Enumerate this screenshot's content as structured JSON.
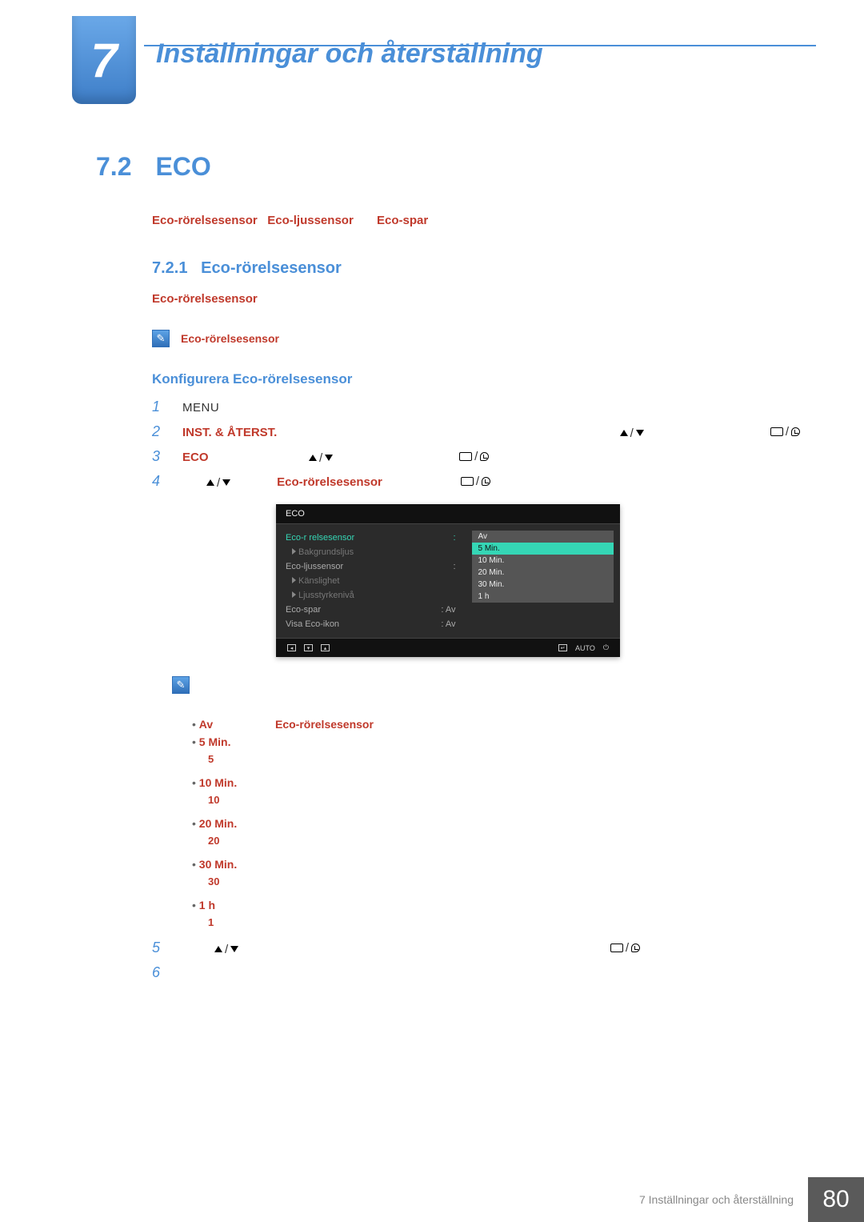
{
  "chapter": {
    "number": "7",
    "title": "Inställningar och återställning"
  },
  "section": {
    "number": "7.2",
    "title": "ECO"
  },
  "intro_terms": {
    "t1": "Eco-rörelsesensor",
    "t2": "Eco-ljussensor",
    "t3": "Eco-spar"
  },
  "subsection": {
    "number": "7.2.1",
    "title": "Eco-rörelsesensor"
  },
  "body": {
    "p1_term": "Eco-rörelsesensor",
    "note_term": "Eco-rörelsesensor",
    "configure_heading": "Konfigurera Eco-rörelsesensor"
  },
  "steps": {
    "s1": {
      "num": "1",
      "label": "MENU"
    },
    "s2": {
      "num": "2",
      "label": "INST. & ÅTERST."
    },
    "s3": {
      "num": "3",
      "label": "ECO"
    },
    "s4": {
      "num": "4",
      "label": "Eco-rörelsesensor"
    },
    "s5": {
      "num": "5"
    },
    "s6": {
      "num": "6"
    }
  },
  "osd": {
    "title": "ECO",
    "left_rows": [
      {
        "label": "Eco-r relsesensor",
        "value": "",
        "cls": "active"
      },
      {
        "label": "Bakgrundsljus",
        "value": "",
        "cls": "sub"
      },
      {
        "label": "Eco-ljussensor",
        "value": "",
        "cls": ""
      },
      {
        "label": "Känslighet",
        "value": "",
        "cls": "sub"
      },
      {
        "label": "Ljusstyrkenivå",
        "value": "",
        "cls": "sub"
      },
      {
        "label": "Eco-spar",
        "value": "Av",
        "cls": ""
      },
      {
        "label": "Visa Eco-ikon",
        "value": "Av",
        "cls": ""
      }
    ],
    "right_opts": [
      "Av",
      "5 Min.",
      "10 Min.",
      "20 Min.",
      "30 Min.",
      "1 h"
    ],
    "right_selected": "5 Min.",
    "footer_auto": "AUTO"
  },
  "bullets": {
    "b_av": {
      "label": "Av",
      "term": "Eco-rörelsesensor"
    },
    "b5": {
      "label": "5 Min.",
      "sub": "5"
    },
    "b10": {
      "label": "10 Min.",
      "sub": "10"
    },
    "b20": {
      "label": "20 Min.",
      "sub": "20"
    },
    "b30": {
      "label": "30 Min.",
      "sub": "30"
    },
    "b1h": {
      "label": "1 h",
      "sub": "1"
    }
  },
  "footer": {
    "text": "7 Inställningar och återställning",
    "page": "80"
  },
  "colors": {
    "accent_blue": "#4a8fd8",
    "accent_orange": "#c0392b",
    "osd_bg": "#2b2b2b",
    "osd_highlight": "#35d6b5",
    "footer_box": "#5a5a5a"
  }
}
